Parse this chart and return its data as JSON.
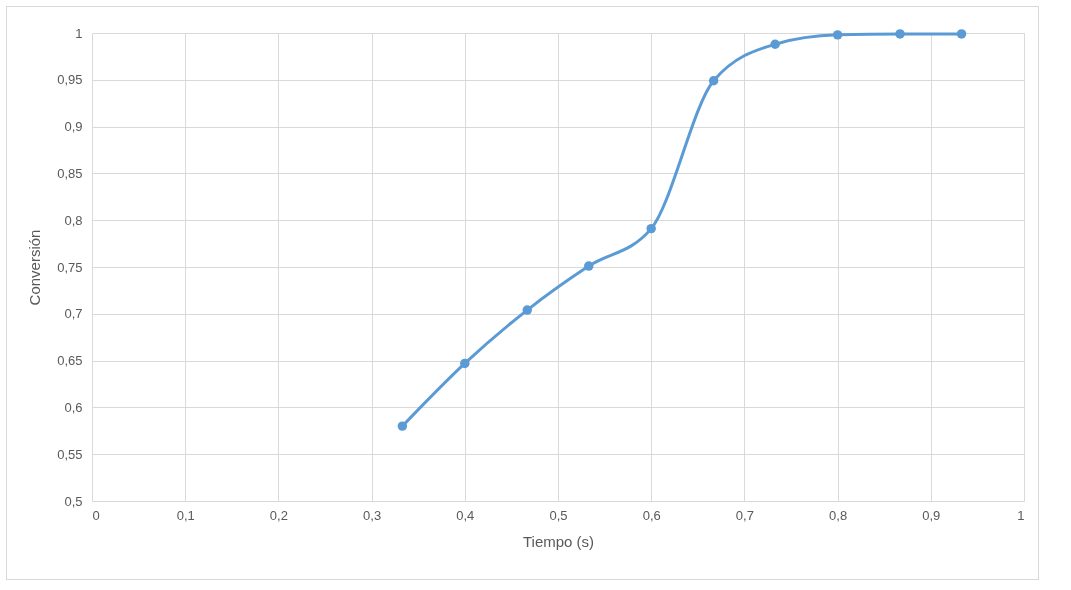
{
  "chart_data": {
    "type": "line",
    "xlabel": "Tiempo (s)",
    "ylabel": "Conversión",
    "x": [
      0.333,
      0.4,
      0.467,
      0.533,
      0.6,
      0.667,
      0.733,
      0.8,
      0.867,
      0.933
    ],
    "series": [
      {
        "color": "#5b9bd5",
        "values": [
          0.58,
          0.647,
          0.704,
          0.751,
          0.791,
          0.949,
          0.988,
          0.998,
          0.999,
          0.999
        ]
      }
    ],
    "xlim": [
      0,
      1
    ],
    "ylim": [
      0.5,
      1
    ],
    "xticks": [
      0,
      {
        "value": 0.1,
        "label": "0,1"
      },
      {
        "value": 0.2,
        "label": "0,2"
      },
      {
        "value": 0.3,
        "label": "0,3"
      },
      {
        "value": 0.4,
        "label": "0,4"
      },
      {
        "value": 0.5,
        "label": "0,5"
      },
      {
        "value": 0.6,
        "label": "0,6"
      },
      {
        "value": 0.7,
        "label": "0,7"
      },
      {
        "value": 0.8,
        "label": "0,8"
      },
      {
        "value": 0.9,
        "label": "0,9"
      },
      1
    ],
    "yticks": [
      {
        "value": 0.5,
        "label": "0,5"
      },
      {
        "value": 0.55,
        "label": "0,55"
      },
      {
        "value": 0.6,
        "label": "0,6"
      },
      {
        "value": 0.65,
        "label": "0,65"
      },
      {
        "value": 0.7,
        "label": "0,7"
      },
      {
        "value": 0.75,
        "label": "0,75"
      },
      {
        "value": 0.8,
        "label": "0,8"
      },
      {
        "value": 0.85,
        "label": "0,85"
      },
      {
        "value": 0.9,
        "label": "0,9"
      },
      {
        "value": 0.95,
        "label": "0,95"
      },
      1
    ],
    "grid": true,
    "marker": "circle",
    "line_style": "solid"
  }
}
